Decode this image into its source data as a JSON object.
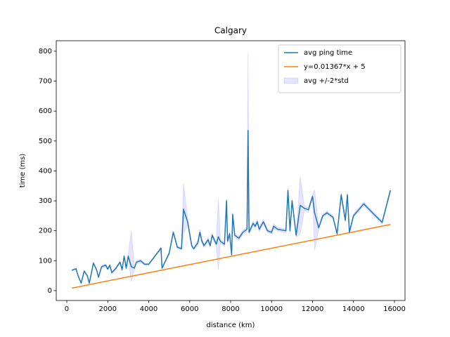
{
  "chart_data": {
    "type": "line",
    "title": "Calgary",
    "x_label": "distance (km)",
    "y_label": "time (ms)",
    "xlim": [
      -515,
      16515
    ],
    "ylim": [
      -33,
      835
    ],
    "xticks": [
      0,
      2000,
      4000,
      6000,
      8000,
      10000,
      12000,
      14000,
      16000
    ],
    "yticks": [
      0,
      100,
      200,
      300,
      400,
      500,
      600,
      700,
      800
    ],
    "legend": "upper right",
    "series": [
      {
        "name": "avg ping time",
        "color": "#1f77b4",
        "x": [
          250,
          450,
          550,
          700,
          850,
          1000,
          1100,
          1300,
          1450,
          1550,
          1700,
          1900,
          2000,
          2100,
          2200,
          2400,
          2600,
          2700,
          2800,
          2900,
          3000,
          3150,
          3300,
          3400,
          3600,
          3800,
          4000,
          4600,
          4650,
          5000,
          5200,
          5400,
          5600,
          5700,
          5900,
          6100,
          6200,
          6400,
          6500,
          6600,
          6700,
          6900,
          7000,
          7100,
          7300,
          7400,
          7500,
          7700,
          7800,
          7850,
          7950,
          8050,
          8100,
          8200,
          8400,
          8600,
          8800,
          8850,
          8900,
          9100,
          9200,
          9300,
          9400,
          9600,
          9800,
          10000,
          10100,
          10300,
          10700,
          10800,
          10900,
          11000,
          11200,
          11400,
          11600,
          11800,
          12000,
          12100,
          12300,
          12500,
          12700,
          13000,
          13200,
          13400,
          13600,
          13700,
          13800,
          14000,
          14500,
          15000,
          15400,
          15800
        ],
        "values": [
          68,
          73,
          50,
          25,
          65,
          50,
          25,
          92,
          70,
          45,
          80,
          85,
          72,
          85,
          60,
          75,
          95,
          70,
          115,
          75,
          115,
          80,
          75,
          95,
          100,
          88,
          88,
          142,
          75,
          125,
          195,
          145,
          140,
          272,
          230,
          150,
          140,
          160,
          195,
          165,
          150,
          170,
          150,
          185,
          155,
          180,
          165,
          155,
          300,
          165,
          190,
          120,
          255,
          185,
          175,
          195,
          205,
          535,
          195,
          225,
          215,
          230,
          205,
          230,
          200,
          195,
          215,
          205,
          200,
          335,
          200,
          300,
          185,
          285,
          275,
          270,
          315,
          260,
          210,
          250,
          260,
          245,
          190,
          320,
          235,
          320,
          195,
          250,
          290,
          255,
          228,
          335
        ]
      },
      {
        "name": "y=0.01367*x + 5",
        "color": "#ff7f0e",
        "x": [
          250,
          15800
        ],
        "values": [
          8.4,
          221
        ]
      },
      {
        "name": "avg +/-2*std",
        "color": "#0000ff",
        "x": [
          250,
          450,
          550,
          700,
          850,
          1000,
          1100,
          1300,
          1450,
          1550,
          1700,
          1900,
          2000,
          2100,
          2200,
          2400,
          2600,
          2700,
          2800,
          2900,
          3000,
          3150,
          3300,
          3400,
          3600,
          3800,
          4000,
          4600,
          4650,
          5000,
          5200,
          5400,
          5600,
          5700,
          5900,
          6100,
          6200,
          6400,
          6500,
          6600,
          6700,
          6900,
          7000,
          7100,
          7300,
          7400,
          7500,
          7700,
          7800,
          7850,
          7950,
          8050,
          8100,
          8200,
          8400,
          8600,
          8800,
          8850,
          8900,
          9100,
          9200,
          9300,
          9400,
          9600,
          9800,
          10000,
          10100,
          10300,
          10700,
          10800,
          10900,
          11000,
          11200,
          11400,
          11600,
          11800,
          12000,
          12100,
          12300,
          12500,
          12700,
          13000,
          13200,
          13400,
          13600,
          13700,
          13800,
          14000,
          14500,
          15000,
          15400,
          15800
        ],
        "lower": [
          66,
          71,
          48,
          23,
          62,
          47,
          22,
          88,
          67,
          42,
          76,
          80,
          68,
          82,
          56,
          72,
          90,
          66,
          110,
          70,
          110,
          30,
          70,
          90,
          95,
          84,
          85,
          138,
          72,
          120,
          190,
          140,
          135,
          190,
          220,
          145,
          136,
          150,
          185,
          158,
          144,
          162,
          144,
          178,
          148,
          70,
          158,
          148,
          292,
          158,
          180,
          110,
          248,
          178,
          168,
          188,
          198,
          275,
          188,
          218,
          208,
          222,
          198,
          222,
          194,
          190,
          208,
          198,
          194,
          328,
          194,
          292,
          178,
          190,
          268,
          262,
          308,
          135,
          204,
          244,
          254,
          240,
          184,
          312,
          228,
          312,
          188,
          244,
          284,
          249,
          222,
          328
        ],
        "upper": [
          70,
          75,
          52,
          27,
          68,
          53,
          28,
          96,
          73,
          48,
          84,
          90,
          76,
          88,
          64,
          78,
          100,
          74,
          120,
          80,
          120,
          200,
          80,
          100,
          105,
          92,
          91,
          146,
          78,
          130,
          200,
          150,
          145,
          360,
          240,
          155,
          144,
          170,
          205,
          172,
          156,
          178,
          156,
          192,
          162,
          305,
          172,
          162,
          308,
          172,
          200,
          130,
          262,
          192,
          182,
          202,
          212,
          795,
          202,
          232,
          222,
          238,
          212,
          238,
          206,
          200,
          222,
          212,
          206,
          342,
          206,
          308,
          192,
          380,
          282,
          278,
          322,
          335,
          216,
          256,
          266,
          250,
          196,
          328,
          242,
          328,
          202,
          256,
          296,
          261,
          234,
          342
        ]
      }
    ]
  }
}
